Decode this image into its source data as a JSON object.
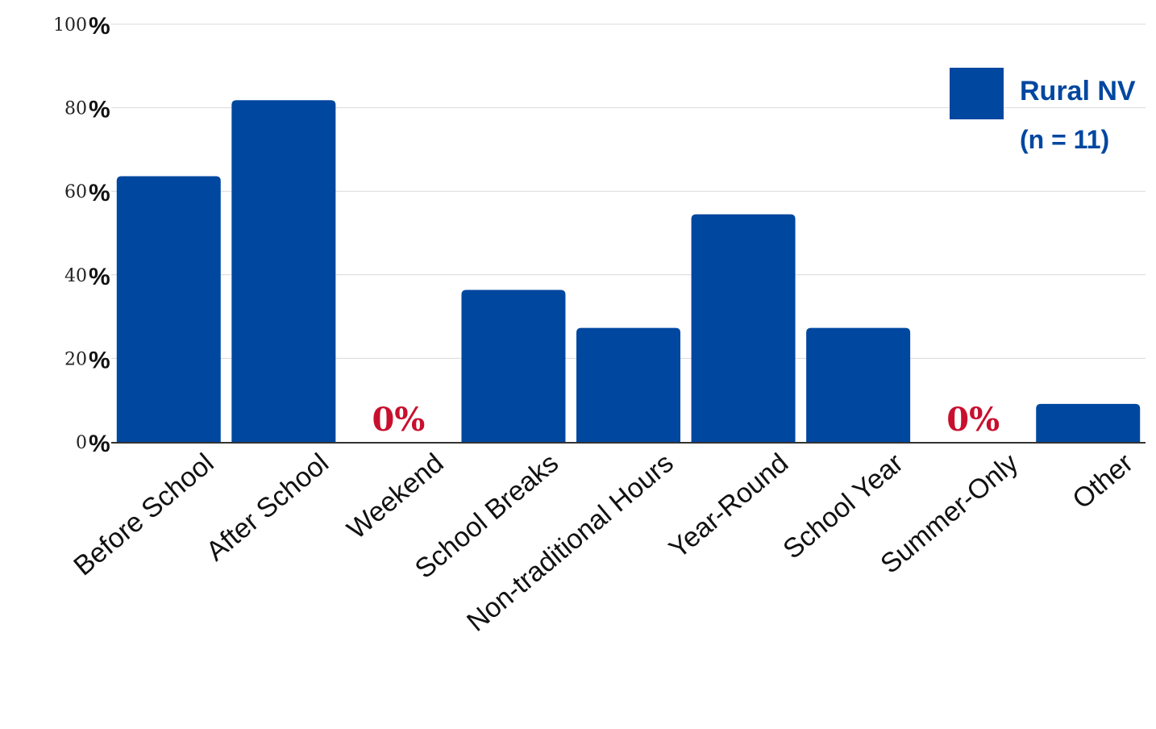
{
  "colors": {
    "bar": "#0047a0",
    "zero_label": "#c8102e",
    "legend_text": "#0047a0",
    "grid": "#d9d9d9",
    "axis": "#333333"
  },
  "chart_data": {
    "type": "bar",
    "categories": [
      "Before School",
      "After School",
      "Weekend",
      "School Breaks",
      "Non-traditional Hours",
      "Year-Round",
      "School Year",
      "Summer-Only",
      "Other"
    ],
    "series": [
      {
        "name": "Rural NV",
        "values": [
          63.6,
          81.8,
          0,
          36.4,
          27.3,
          54.5,
          27.3,
          0,
          9.1
        ]
      }
    ],
    "ylim": [
      0,
      100
    ],
    "yticks": [
      {
        "value": 0,
        "num": "0",
        "pct": "%"
      },
      {
        "value": 20,
        "num": "20",
        "pct": "%"
      },
      {
        "value": 40,
        "num": "40",
        "pct": "%"
      },
      {
        "value": 60,
        "num": "60",
        "pct": "%"
      },
      {
        "value": 80,
        "num": "80",
        "pct": "%"
      },
      {
        "value": 100,
        "num": "100",
        "pct": "%"
      }
    ],
    "zero_labels": [
      {
        "category": "Weekend",
        "text": "0%"
      },
      {
        "category": "Summer-Only",
        "text": "0%"
      }
    ],
    "legend": {
      "position": "top-right",
      "label": "Rural NV",
      "sublabel": "(n = 11)"
    },
    "grid": true
  }
}
